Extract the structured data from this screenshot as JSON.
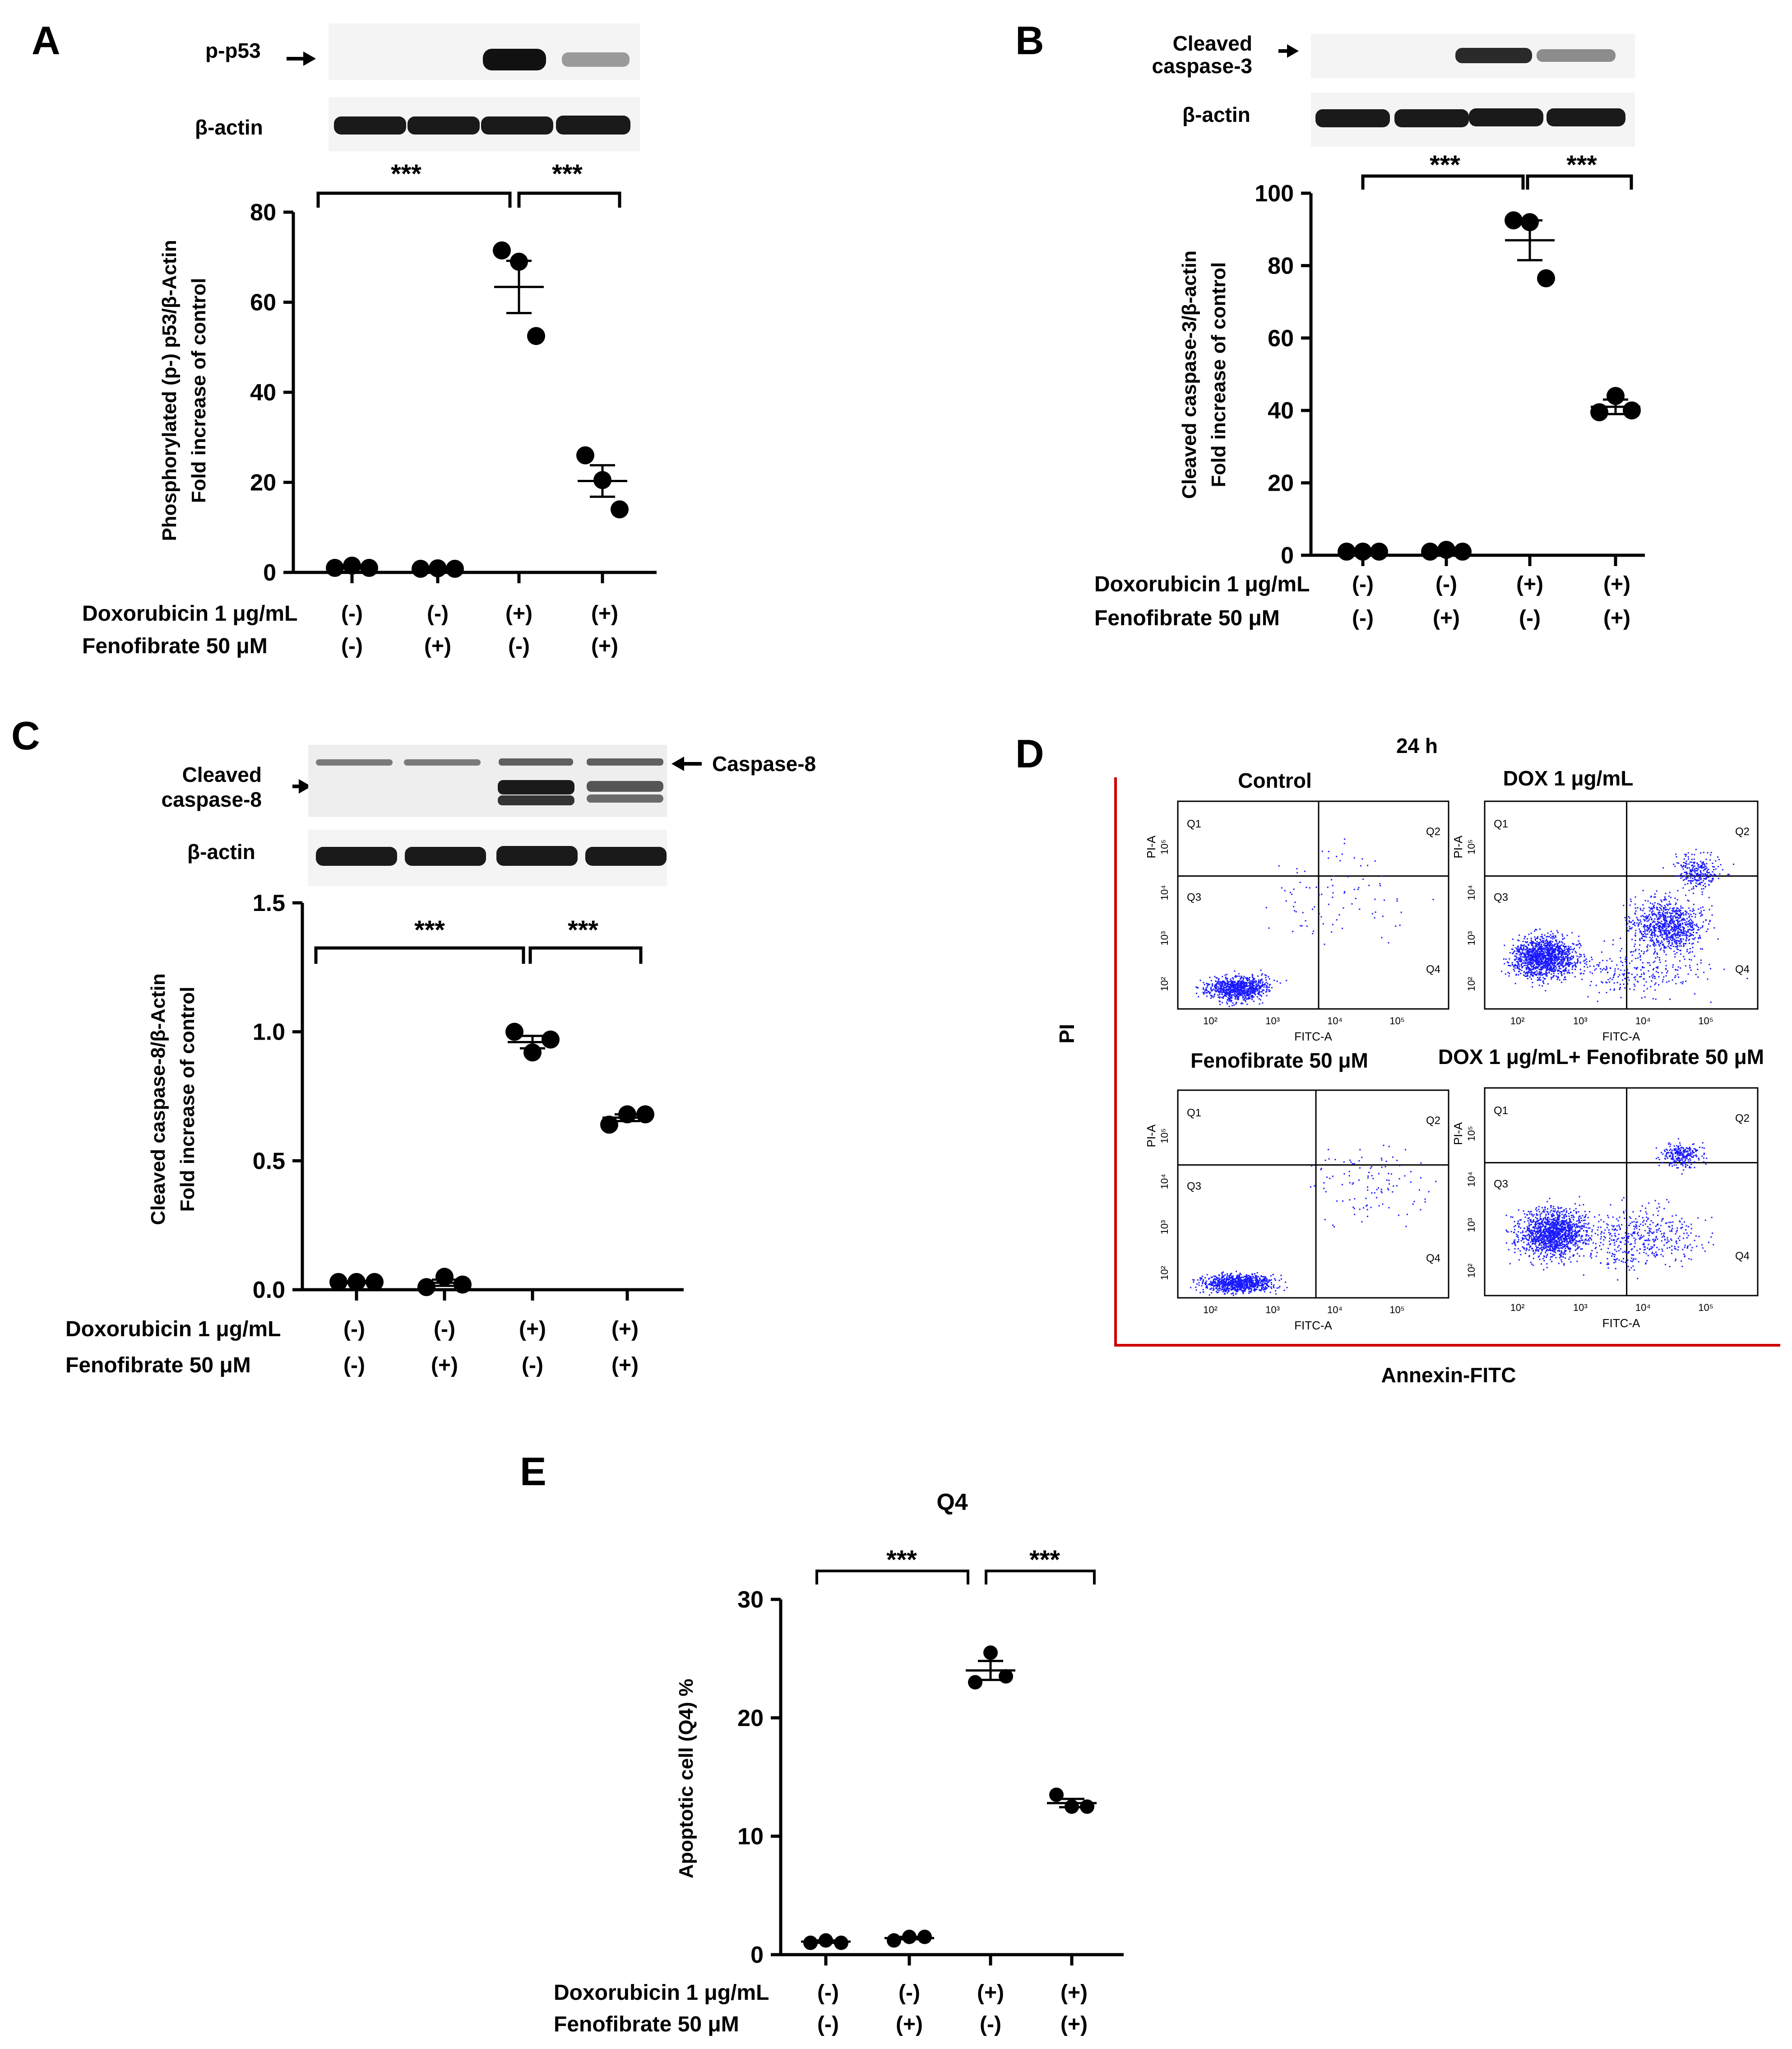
{
  "figure": {
    "panels": {
      "a": {
        "letter": "A"
      },
      "b": {
        "letter": "B"
      },
      "c": {
        "letter": "C"
      },
      "d": {
        "letter": "D"
      },
      "e": {
        "letter": "E"
      }
    },
    "blot_labels": {
      "a_target": "p-p53",
      "a_loading": "β-actin",
      "b_target_line1": "Cleaved",
      "b_target_line2": "caspase-3",
      "b_loading": "β-actin",
      "c_target_line1": "Cleaved",
      "c_target_line2": "caspase-8",
      "c_uncleaved": "Caspase-8",
      "c_loading": "β-actin"
    },
    "condition_table": {
      "row1_label": "Doxorubicin 1 μg/mL",
      "row2_label": "Fenofibrate 50 μM",
      "row1": [
        "(-)",
        "(-)",
        "(+)",
        "(+)"
      ],
      "row2": [
        "(-)",
        "(+)",
        "(-)",
        "(+)"
      ]
    },
    "significance": "***",
    "flow": {
      "timepoint": "24 h",
      "panel_titles": [
        "Control",
        "DOX 1 μg/mL",
        "Fenofibrate 50 μM",
        "DOX 1 μg/mL+ Fenofibrate 50 μM"
      ],
      "y_axis": "PI",
      "x_axis": "Annexin-FITC",
      "plot_x_label": "FITC-A",
      "plot_y_label": "PI-A",
      "quadrants": [
        "Q1",
        "Q2",
        "Q3",
        "Q4"
      ],
      "decades": [
        "10²",
        "10³",
        "10⁴",
        "10⁵"
      ]
    }
  },
  "colors": {
    "dots": "#1a1aff",
    "frame": "#cc0000",
    "data": "#000000"
  },
  "chart_data": [
    {
      "id": "A",
      "type": "scatter",
      "ylabel_line1": "Phosphorylated (p-) p53/β-Actin",
      "ylabel_line2": "Fold  increase of control",
      "ylim": [
        0,
        80
      ],
      "yticks": [
        0,
        20,
        40,
        60,
        80
      ],
      "ytick_labels": [
        "0",
        "20",
        "40",
        "60",
        "80"
      ],
      "groups": [
        {
          "points": [
            1.0,
            1.5,
            1.0
          ],
          "mean": 1.2,
          "sem": 0.2
        },
        {
          "points": [
            0.8,
            0.9,
            0.8
          ],
          "mean": 0.8,
          "sem": 0.1
        },
        {
          "points": [
            71.5,
            69.0,
            52.5
          ],
          "mean": 63.4,
          "sem": 5.8
        },
        {
          "points": [
            26.0,
            20.5,
            14.0
          ],
          "mean": 20.3,
          "sem": 3.5
        }
      ]
    },
    {
      "id": "B",
      "type": "scatter",
      "ylabel_line1": "Cleaved caspase-3/β-actin",
      "ylabel_line2": "Fold  increase of control",
      "ylim": [
        0,
        100
      ],
      "yticks": [
        0,
        20,
        40,
        60,
        80,
        100
      ],
      "ytick_labels": [
        "0",
        "20",
        "40",
        "60",
        "80",
        "100"
      ],
      "groups": [
        {
          "points": [
            1.0,
            1.0,
            1.0
          ],
          "mean": 1.0,
          "sem": 0.1
        },
        {
          "points": [
            1.0,
            1.5,
            1.0
          ],
          "mean": 1.2,
          "sem": 0.2
        },
        {
          "points": [
            92.5,
            92.0,
            76.5
          ],
          "mean": 87.0,
          "sem": 5.5
        },
        {
          "points": [
            39.5,
            44.0,
            40.0
          ],
          "mean": 41.0,
          "sem": 2.0
        }
      ]
    },
    {
      "id": "C",
      "type": "scatter",
      "ylabel_line1": "Cleaved caspase-8/β-Actin",
      "ylabel_line2": "Fold  increase of control",
      "ylim": [
        0,
        1.5
      ],
      "yticks": [
        0,
        0.5,
        1.0,
        1.5
      ],
      "ytick_labels": [
        "0.0",
        "0.5",
        "1.0",
        "1.5"
      ],
      "groups": [
        {
          "points": [
            0.03,
            0.03,
            0.03
          ],
          "mean": 0.03,
          "sem": 0.004
        },
        {
          "points": [
            0.01,
            0.05,
            0.02
          ],
          "mean": 0.027,
          "sem": 0.012
        },
        {
          "points": [
            1.0,
            0.92,
            0.97
          ],
          "mean": 0.96,
          "sem": 0.024
        },
        {
          "points": [
            0.64,
            0.68,
            0.68
          ],
          "mean": 0.667,
          "sem": 0.013
        }
      ]
    },
    {
      "id": "E",
      "type": "scatter",
      "title": "Q4",
      "ylabel_line1": "Apoptotic cell (Q4) %",
      "ylabel_line2": "",
      "ylim": [
        0,
        30
      ],
      "yticks": [
        0,
        10,
        20,
        30
      ],
      "ytick_labels": [
        "0",
        "10",
        "20",
        "30"
      ],
      "groups": [
        {
          "points": [
            1.0,
            1.2,
            1.0
          ],
          "mean": 1.1,
          "sem": 0.1
        },
        {
          "points": [
            1.2,
            1.5,
            1.5
          ],
          "mean": 1.4,
          "sem": 0.1
        },
        {
          "points": [
            23.0,
            25.5,
            23.5
          ],
          "mean": 24.0,
          "sem": 0.8
        },
        {
          "points": [
            13.5,
            12.5,
            12.5
          ],
          "mean": 12.8,
          "sem": 0.35
        }
      ]
    }
  ]
}
